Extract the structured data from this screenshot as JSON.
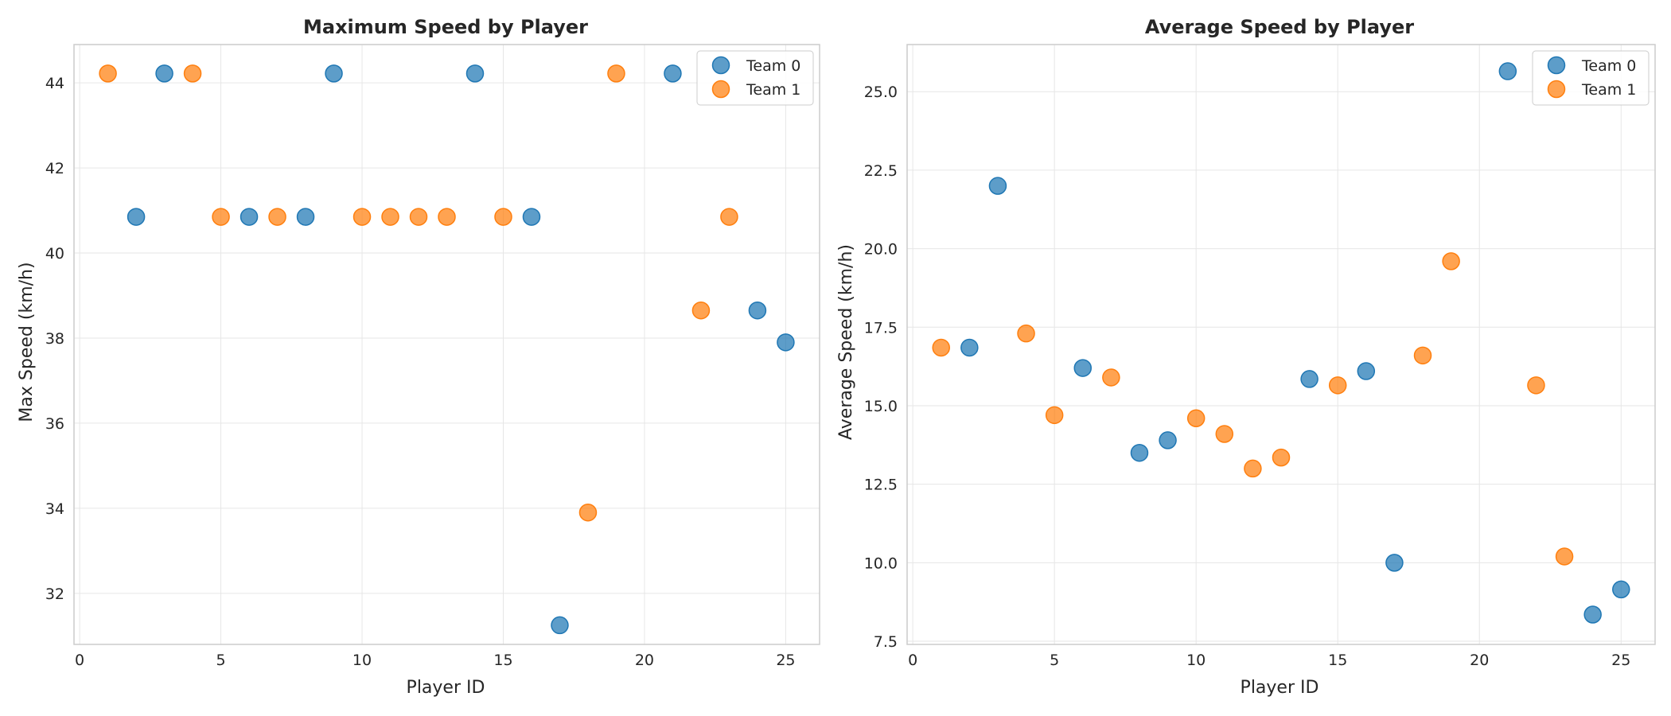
{
  "colors": {
    "team_0": "#1f77b4",
    "team_1": "#ff7f0e"
  },
  "chart_data": [
    {
      "type": "scatter",
      "title": "Maximum Speed by Player",
      "xlabel": "Player ID",
      "ylabel": "Max Speed (km/h)",
      "xlim": [
        -0.2,
        26.2
      ],
      "ylim": [
        30.8,
        44.9
      ],
      "xticks": [
        0,
        5,
        10,
        15,
        20,
        25
      ],
      "yticks": [
        32,
        34,
        36,
        38,
        40,
        42,
        44
      ],
      "grid": true,
      "legend_position": "top-right",
      "series": [
        {
          "name": "Team 0",
          "color_key": "team_0",
          "x": [
            2,
            3,
            6,
            8,
            9,
            14,
            16,
            17,
            21,
            24,
            25
          ],
          "y": [
            40.85,
            44.22,
            40.85,
            40.85,
            44.22,
            44.22,
            40.85,
            31.25,
            44.22,
            38.65,
            37.9
          ]
        },
        {
          "name": "Team 1",
          "color_key": "team_1",
          "x": [
            1,
            4,
            5,
            7,
            10,
            11,
            12,
            13,
            15,
            18,
            19,
            22,
            23
          ],
          "y": [
            44.22,
            44.22,
            40.85,
            40.85,
            40.85,
            40.85,
            40.85,
            40.85,
            40.85,
            33.9,
            44.22,
            38.65,
            40.85
          ]
        }
      ]
    },
    {
      "type": "scatter",
      "title": "Average Speed by Player",
      "xlabel": "Player ID",
      "ylabel": "Average Speed (km/h)",
      "xlim": [
        -0.2,
        26.2
      ],
      "ylim": [
        7.4,
        26.5
      ],
      "xticks": [
        0,
        5,
        10,
        15,
        20,
        25
      ],
      "yticks": [
        7.5,
        10.0,
        12.5,
        15.0,
        17.5,
        20.0,
        22.5,
        25.0
      ],
      "ytick_labels": [
        "7.5",
        "10.0",
        "12.5",
        "15.0",
        "17.5",
        "20.0",
        "22.5",
        "25.0"
      ],
      "grid": true,
      "legend_position": "top-right",
      "series": [
        {
          "name": "Team 0",
          "color_key": "team_0",
          "x": [
            2,
            3,
            6,
            8,
            9,
            14,
            16,
            17,
            21,
            24,
            25
          ],
          "y": [
            16.85,
            22.0,
            16.2,
            13.5,
            13.9,
            15.85,
            16.1,
            10.0,
            25.65,
            8.35,
            9.15
          ]
        },
        {
          "name": "Team 1",
          "color_key": "team_1",
          "x": [
            1,
            4,
            5,
            7,
            10,
            11,
            12,
            13,
            15,
            18,
            19,
            22,
            23
          ],
          "y": [
            16.85,
            17.3,
            14.7,
            15.9,
            14.6,
            14.1,
            13.0,
            13.35,
            15.65,
            16.6,
            19.6,
            15.65,
            10.2
          ]
        }
      ]
    }
  ]
}
